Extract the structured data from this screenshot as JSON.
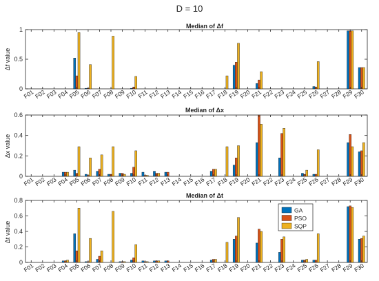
{
  "figure_title": "D = 10",
  "colors": {
    "GA": "#0072BD",
    "PSO": "#D95319",
    "SQP": "#EDB120"
  },
  "legend": {
    "placement": "inside, upper-right of bottom panel"
  },
  "chart_data": [
    {
      "type": "bar",
      "title": "Median of Δf",
      "ylabel": "Δf value",
      "xlabel": "",
      "ylim": [
        0,
        1
      ],
      "yticks": [
        0,
        0.5,
        1
      ],
      "ytick_labels": [
        "0",
        "0.5",
        "1"
      ],
      "categories": [
        "F01",
        "F02",
        "F03",
        "F04",
        "F05",
        "F06",
        "F07",
        "F08",
        "F09",
        "F10",
        "F11",
        "F12",
        "F13",
        "F14",
        "F15",
        "F16",
        "F17",
        "F18",
        "F19",
        "F20",
        "F21",
        "F22",
        "F23",
        "F24",
        "F25",
        "F26",
        "F27",
        "F28",
        "F29",
        "F30"
      ],
      "series": [
        {
          "name": "GA",
          "values": [
            0,
            0,
            0,
            0,
            0.52,
            0.01,
            0,
            0,
            0,
            0.01,
            0,
            0,
            0,
            0,
            0,
            0,
            0,
            0,
            0.4,
            0,
            0.09,
            0,
            0,
            0,
            0,
            0.04,
            0,
            0,
            0.98,
            0.36
          ]
        },
        {
          "name": "PSO",
          "values": [
            0,
            0,
            0,
            0,
            0.22,
            0.01,
            0,
            0,
            0,
            0.03,
            0,
            0,
            0,
            0,
            0,
            0,
            0,
            0,
            0.45,
            0,
            0.15,
            0,
            0,
            0,
            0,
            0.03,
            0,
            0,
            0.98,
            0.36
          ]
        },
        {
          "name": "SQP",
          "values": [
            0,
            0,
            0,
            0,
            0.95,
            0.41,
            0,
            0.89,
            0,
            0.21,
            0,
            0,
            0,
            0,
            0,
            0,
            0,
            0.22,
            0.77,
            0,
            0.29,
            0,
            0,
            0,
            0,
            0.46,
            0,
            0,
            0.98,
            0.36
          ]
        }
      ]
    },
    {
      "type": "bar",
      "title": "Median of Δx",
      "ylabel": "Δx value",
      "xlabel": "",
      "ylim": [
        0,
        0.6
      ],
      "yticks": [
        0,
        0.2,
        0.4,
        0.6
      ],
      "ytick_labels": [
        "0",
        "0.2",
        "0.4",
        "0.6"
      ],
      "categories": [
        "F01",
        "F02",
        "F03",
        "F04",
        "F05",
        "F06",
        "F07",
        "F08",
        "F09",
        "F10",
        "F11",
        "F12",
        "F13",
        "F14",
        "F15",
        "F16",
        "F17",
        "F18",
        "F19",
        "F20",
        "F21",
        "F22",
        "F23",
        "F24",
        "F25",
        "F26",
        "F27",
        "F28",
        "F29",
        "F30"
      ],
      "series": [
        {
          "name": "GA",
          "values": [
            0,
            0,
            0,
            0.04,
            0.06,
            0.02,
            0.05,
            0.02,
            0.03,
            0.03,
            0.04,
            0.05,
            0.04,
            0,
            0,
            0,
            0.05,
            0,
            0.11,
            0,
            0.33,
            0,
            0.18,
            0,
            0.03,
            0.02,
            0,
            0,
            0.33,
            0.24
          ]
        },
        {
          "name": "PSO",
          "values": [
            0,
            0,
            0,
            0.04,
            0.03,
            0.01,
            0.07,
            0.02,
            0.03,
            0.09,
            0.01,
            0.03,
            0.04,
            0,
            0,
            0,
            0.07,
            0,
            0.18,
            0,
            0.6,
            0,
            0.42,
            0,
            0.02,
            0.02,
            0,
            0,
            0.41,
            0.25
          ]
        },
        {
          "name": "SQP",
          "values": [
            0,
            0,
            0,
            0.04,
            0.29,
            0.18,
            0.21,
            0.29,
            0.02,
            0.25,
            0.01,
            0.03,
            0,
            0,
            0,
            0,
            0.07,
            0.29,
            0.3,
            0,
            0.51,
            0,
            0.47,
            0,
            0.06,
            0.26,
            0,
            0,
            0.29,
            0.33
          ]
        }
      ]
    },
    {
      "type": "bar",
      "title": "Median of Δt",
      "ylabel": "Δt value",
      "xlabel": "",
      "ylim": [
        0,
        0.8
      ],
      "yticks": [
        0,
        0.2,
        0.4,
        0.6,
        0.8
      ],
      "ytick_labels": [
        "0",
        "0.2",
        "0.4",
        "0.6",
        "0.8"
      ],
      "categories": [
        "F01",
        "F02",
        "F03",
        "F04",
        "F05",
        "F06",
        "F07",
        "F08",
        "F09",
        "F10",
        "F11",
        "F12",
        "F13",
        "F14",
        "F15",
        "F16",
        "F17",
        "F18",
        "F19",
        "F20",
        "F21",
        "F22",
        "F23",
        "F24",
        "F25",
        "F26",
        "F27",
        "F28",
        "F29",
        "F30"
      ],
      "series": [
        {
          "name": "GA",
          "values": [
            0,
            0,
            0,
            0.02,
            0.37,
            0.01,
            0.04,
            0,
            0.01,
            0.03,
            0.02,
            0.02,
            0.02,
            0,
            0,
            0,
            0.03,
            0,
            0.3,
            0,
            0.25,
            0,
            0.13,
            0,
            0.03,
            0.03,
            0,
            0,
            0.72,
            0.3
          ]
        },
        {
          "name": "PSO",
          "values": [
            0,
            0,
            0,
            0.02,
            0.15,
            0.01,
            0.08,
            0,
            0.01,
            0.06,
            0.01,
            0.02,
            0.02,
            0,
            0,
            0,
            0.04,
            0,
            0.34,
            0,
            0.43,
            0,
            0.3,
            0,
            0.03,
            0.03,
            0,
            0,
            0.73,
            0.31
          ]
        },
        {
          "name": "SQP",
          "values": [
            0,
            0,
            0,
            0.03,
            0.7,
            0.31,
            0.15,
            0.66,
            0.01,
            0.23,
            0.01,
            0.02,
            0,
            0,
            0,
            0,
            0.04,
            0.26,
            0.58,
            0,
            0.4,
            0,
            0.33,
            0,
            0.04,
            0.37,
            0,
            0,
            0.71,
            0.34
          ]
        }
      ]
    }
  ]
}
